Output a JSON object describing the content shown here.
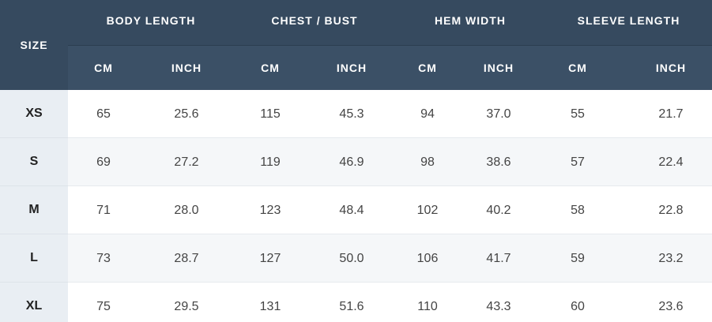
{
  "table": {
    "size_label": "SIZE",
    "groups": [
      {
        "title": "BODY LENGTH",
        "units": [
          "CM",
          "INCH"
        ]
      },
      {
        "title": "CHEST / BUST",
        "units": [
          "CM",
          "INCH"
        ]
      },
      {
        "title": "HEM WIDTH",
        "units": [
          "CM",
          "INCH"
        ]
      },
      {
        "title": "SLEEVE LENGTH",
        "units": [
          "CM",
          "INCH"
        ]
      }
    ],
    "rows": [
      {
        "size": "XS",
        "cells": [
          "65",
          "25.6",
          "115",
          "45.3",
          "94",
          "37.0",
          "55",
          "21.7"
        ]
      },
      {
        "size": "S",
        "cells": [
          "69",
          "27.2",
          "119",
          "46.9",
          "98",
          "38.6",
          "57",
          "22.4"
        ]
      },
      {
        "size": "M",
        "cells": [
          "71",
          "28.0",
          "123",
          "48.4",
          "102",
          "40.2",
          "58",
          "22.8"
        ]
      },
      {
        "size": "L",
        "cells": [
          "73",
          "28.7",
          "127",
          "50.0",
          "106",
          "41.7",
          "59",
          "23.2"
        ]
      },
      {
        "size": "XL",
        "cells": [
          "75",
          "29.5",
          "131",
          "51.6",
          "110",
          "43.3",
          "60",
          "23.6"
        ]
      }
    ]
  }
}
